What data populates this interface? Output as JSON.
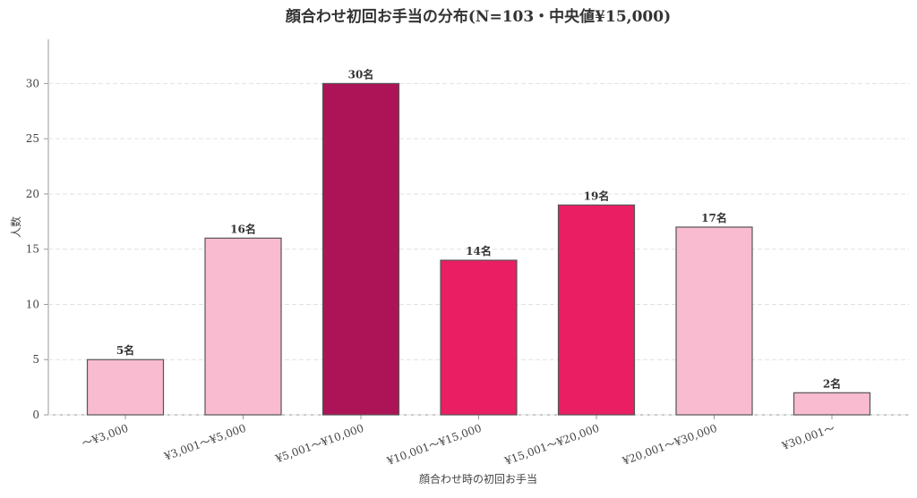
{
  "chart_data": {
    "type": "bar",
    "title": "顔合わせ初回お手当の分布(N=103・中央値¥15,000)",
    "x_label": "顔合わせ時の初回お手当",
    "y_label": "人数",
    "categories": [
      "〜¥3,000",
      "¥3,001〜¥5,000",
      "¥5,001〜¥10,000",
      "¥10,001〜¥15,000",
      "¥15,001〜¥20,000",
      "¥20,001〜¥30,000",
      "¥30,001〜"
    ],
    "values": [
      5,
      16,
      30,
      14,
      19,
      17,
      2
    ],
    "value_labels": [
      "5名",
      "16名",
      "30名",
      "14名",
      "19名",
      "17名",
      "2名"
    ],
    "colors": [
      "#f8bbd0",
      "#f8bbd0",
      "#ad1457",
      "#e91e63",
      "#e91e63",
      "#f8bbd0",
      "#f8bbd0"
    ],
    "ylim": [
      0,
      34
    ],
    "yticks": [
      0,
      5,
      10,
      15,
      20,
      25,
      30
    ],
    "grid": true
  }
}
